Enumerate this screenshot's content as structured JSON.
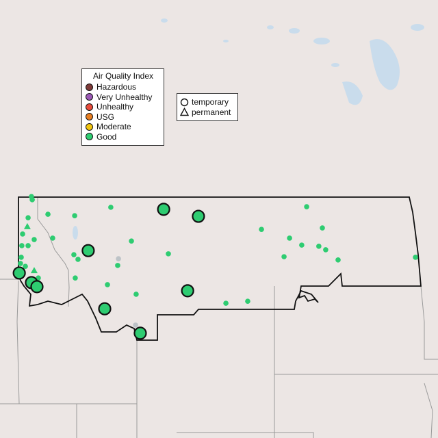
{
  "aqi_legend": {
    "title": "Air Quality Index",
    "items": [
      {
        "label": "Hazardous",
        "color": "#7e3b39"
      },
      {
        "label": "Very Unhealthy",
        "color": "#9b59b6"
      },
      {
        "label": "Unhealthy",
        "color": "#e74c3c"
      },
      {
        "label": "USG",
        "color": "#e67e22"
      },
      {
        "label": "Moderate",
        "color": "#f1c40f"
      },
      {
        "label": "Good",
        "color": "#2ecc71"
      }
    ]
  },
  "type_legend": {
    "items": [
      {
        "label": "temporary",
        "shape": "circle"
      },
      {
        "label": "permanent",
        "shape": "triangle"
      }
    ]
  },
  "colors": {
    "good": "#2ecc71",
    "no_data": "#bdc3c7",
    "land": "#ece6e4",
    "water": "#c9dcec"
  },
  "monitors": [
    {
      "lon": -116.38,
      "lat": 49.02,
      "type": "permanent-small",
      "aqi": "Good"
    },
    {
      "lon": -116.34,
      "lat": 48.91,
      "type": "small",
      "aqi": "Good"
    },
    {
      "lon": -115.54,
      "lat": 48.41,
      "type": "small",
      "aqi": "Good"
    },
    {
      "lon": -114.18,
      "lat": 48.36,
      "type": "small",
      "aqi": "Good"
    },
    {
      "lon": -112.34,
      "lat": 48.65,
      "type": "small",
      "aqi": "Good"
    },
    {
      "lon": -116.55,
      "lat": 48.29,
      "type": "small",
      "aqi": "Good"
    },
    {
      "lon": -116.83,
      "lat": 47.73,
      "type": "small",
      "aqi": "Good"
    },
    {
      "lon": -115.3,
      "lat": 47.59,
      "type": "small",
      "aqi": "Good"
    },
    {
      "lon": -116.24,
      "lat": 47.54,
      "type": "small",
      "aqi": "Good"
    },
    {
      "lon": -116.87,
      "lat": 47.33,
      "type": "small",
      "aqi": "Good"
    },
    {
      "lon": -116.55,
      "lat": 47.33,
      "type": "small",
      "aqi": "Good"
    },
    {
      "lon": -116.9,
      "lat": 46.93,
      "type": "small",
      "aqi": "Good"
    },
    {
      "lon": -116.94,
      "lat": 46.72,
      "type": "small",
      "aqi": "Good"
    },
    {
      "lon": -116.69,
      "lat": 46.62,
      "type": "small",
      "aqi": "Good"
    },
    {
      "lon": -114.22,
      "lat": 47.02,
      "type": "small",
      "aqi": "Good"
    },
    {
      "lon": -114.01,
      "lat": 46.86,
      "type": "small",
      "aqi": "Good"
    },
    {
      "lon": -111.99,
      "lat": 46.65,
      "type": "small",
      "aqi": "Good"
    },
    {
      "lon": -109.41,
      "lat": 47.05,
      "type": "small",
      "aqi": "Good"
    },
    {
      "lon": -111.29,
      "lat": 47.49,
      "type": "small",
      "aqi": "Good"
    },
    {
      "lon": -114.15,
      "lat": 46.22,
      "type": "small",
      "aqi": "Good"
    },
    {
      "lon": -112.51,
      "lat": 45.99,
      "type": "small",
      "aqi": "Good"
    },
    {
      "lon": -111.05,
      "lat": 45.66,
      "type": "small",
      "aqi": "Good"
    },
    {
      "lon": -116.03,
      "lat": 46.22,
      "type": "small",
      "aqi": "Good"
    },
    {
      "lon": -104.67,
      "lat": 47.89,
      "type": "small",
      "aqi": "Good"
    },
    {
      "lon": -102.37,
      "lat": 48.67,
      "type": "small",
      "aqi": "Good"
    },
    {
      "lon": -101.57,
      "lat": 47.94,
      "type": "small",
      "aqi": "Good"
    },
    {
      "lon": -103.24,
      "lat": 47.59,
      "type": "small",
      "aqi": "Good"
    },
    {
      "lon": -102.62,
      "lat": 47.35,
      "type": "small",
      "aqi": "Good"
    },
    {
      "lon": -101.75,
      "lat": 47.31,
      "type": "small",
      "aqi": "Good"
    },
    {
      "lon": -101.4,
      "lat": 47.19,
      "type": "small",
      "aqi": "Good"
    },
    {
      "lon": -103.52,
      "lat": 46.95,
      "type": "small",
      "aqi": "Good"
    },
    {
      "lon": -100.77,
      "lat": 46.84,
      "type": "small",
      "aqi": "Good"
    },
    {
      "lon": -96.83,
      "lat": 46.93,
      "type": "small",
      "aqi": "Good"
    },
    {
      "lon": -106.48,
      "lat": 45.35,
      "type": "small",
      "aqi": "Good"
    },
    {
      "lon": -105.37,
      "lat": 45.42,
      "type": "small",
      "aqi": "Good"
    },
    {
      "lon": -111.95,
      "lat": 46.88,
      "type": "small",
      "aqi": null
    },
    {
      "lon": -111.08,
      "lat": 44.6,
      "type": "small",
      "aqi": null
    },
    {
      "lon": -116.59,
      "lat": 47.99,
      "type": "permanent",
      "aqi": "Good"
    },
    {
      "lon": -116.24,
      "lat": 46.48,
      "type": "permanent",
      "aqi": "Good"
    },
    {
      "lon": -109.65,
      "lat": 48.58,
      "type": "temporary",
      "aqi": "Good"
    },
    {
      "lon": -107.88,
      "lat": 48.34,
      "type": "temporary",
      "aqi": "Good"
    },
    {
      "lon": -113.49,
      "lat": 47.16,
      "type": "temporary",
      "aqi": "Good"
    },
    {
      "lon": -117.0,
      "lat": 46.39,
      "type": "temporary",
      "aqi": "Good"
    },
    {
      "lon": -116.38,
      "lat": 46.06,
      "type": "temporary",
      "aqi": "Good"
    },
    {
      "lon": -116.1,
      "lat": 45.92,
      "type": "temporary",
      "aqi": "Good"
    },
    {
      "lon": -108.43,
      "lat": 45.78,
      "type": "temporary",
      "aqi": "Good"
    },
    {
      "lon": -112.65,
      "lat": 45.16,
      "type": "temporary",
      "aqi": "Good"
    },
    {
      "lon": -110.84,
      "lat": 44.32,
      "type": "temporary",
      "aqi": "Good"
    }
  ]
}
